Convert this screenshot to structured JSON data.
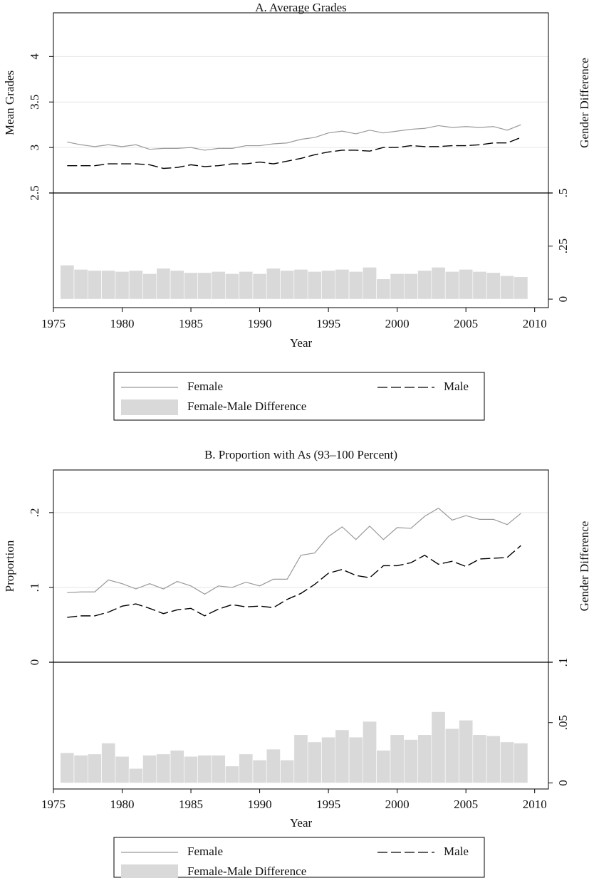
{
  "chart_data": [
    {
      "type": "line",
      "title": "A. Average Grades",
      "xlabel": "Year",
      "ylabel": "Mean Grades",
      "y2label": "Gender Difference",
      "x": [
        1976,
        1977,
        1978,
        1979,
        1980,
        1981,
        1982,
        1983,
        1984,
        1985,
        1986,
        1987,
        1988,
        1989,
        1990,
        1991,
        1992,
        1993,
        1994,
        1995,
        1996,
        1997,
        1998,
        1999,
        2000,
        2001,
        2002,
        2003,
        2004,
        2005,
        2006,
        2007,
        2008,
        2009
      ],
      "xlim": [
        1975,
        2011
      ],
      "xticks": [
        1975,
        1980,
        1985,
        1990,
        1995,
        2000,
        2005,
        2010
      ],
      "ylim": [
        2.5,
        4.48
      ],
      "yticks": [
        2.5,
        3,
        3.5,
        4
      ],
      "y2lim": [
        -0.04,
        0.5
      ],
      "y2ticks": [
        0,
        {
          "value": 0.25,
          "label": ".25"
        },
        {
          "value": 0.5,
          "label": ".5"
        }
      ],
      "grid": true,
      "series": [
        {
          "name": "Female",
          "color": "#999999",
          "dash": "solid",
          "values": [
            3.06,
            3.03,
            3.01,
            3.03,
            3.01,
            3.03,
            2.98,
            2.99,
            2.99,
            3.0,
            2.97,
            2.99,
            2.99,
            3.02,
            3.02,
            3.04,
            3.05,
            3.09,
            3.11,
            3.16,
            3.18,
            3.15,
            3.19,
            3.16,
            3.18,
            3.2,
            3.21,
            3.24,
            3.22,
            3.23,
            3.22,
            3.23,
            3.19,
            3.25
          ]
        },
        {
          "name": "Male",
          "color": "#000000",
          "dash": "dashed",
          "values": [
            2.8,
            2.8,
            2.8,
            2.82,
            2.82,
            2.82,
            2.81,
            2.77,
            2.78,
            2.81,
            2.79,
            2.8,
            2.82,
            2.82,
            2.84,
            2.82,
            2.85,
            2.88,
            2.92,
            2.95,
            2.97,
            2.97,
            2.96,
            3.0,
            3.0,
            3.02,
            3.01,
            3.01,
            3.02,
            3.02,
            3.03,
            3.05,
            3.05,
            3.11
          ]
        },
        {
          "name": "Female-Male Difference",
          "color": "#d9d9d9",
          "type": "bar",
          "axis": "y2",
          "values": [
            0.16,
            0.14,
            0.135,
            0.135,
            0.13,
            0.135,
            0.12,
            0.145,
            0.135,
            0.125,
            0.125,
            0.13,
            0.12,
            0.13,
            0.12,
            0.145,
            0.135,
            0.14,
            0.13,
            0.135,
            0.14,
            0.13,
            0.15,
            0.095,
            0.12,
            0.12,
            0.135,
            0.15,
            0.13,
            0.14,
            0.13,
            0.125,
            0.11,
            0.105
          ]
        }
      ]
    },
    {
      "type": "line",
      "title": "B. Proportion with As (93–100 Percent)",
      "xlabel": "Year",
      "ylabel": "Proportion",
      "y2label": "Gender Difference",
      "x": [
        1976,
        1977,
        1978,
        1979,
        1980,
        1981,
        1982,
        1983,
        1984,
        1985,
        1986,
        1987,
        1988,
        1989,
        1990,
        1991,
        1992,
        1993,
        1994,
        1995,
        1996,
        1997,
        1998,
        1999,
        2000,
        2001,
        2002,
        2003,
        2004,
        2005,
        2006,
        2007,
        2008,
        2009
      ],
      "xlim": [
        1975,
        2011
      ],
      "xticks": [
        1975,
        1980,
        1985,
        1990,
        1995,
        2000,
        2005,
        2010
      ],
      "ylim": [
        0,
        0.257
      ],
      "yticks": [
        0,
        {
          "value": 0.1,
          "label": ".1"
        },
        {
          "value": 0.2,
          "label": ".2"
        }
      ],
      "y2lim": [
        -0.005,
        0.1
      ],
      "y2ticks": [
        0,
        {
          "value": 0.05,
          "label": ".05"
        },
        {
          "value": 0.1,
          "label": ".1"
        }
      ],
      "grid": true,
      "series": [
        {
          "name": "Female",
          "color": "#999999",
          "dash": "solid",
          "values": [
            0.093,
            0.094,
            0.094,
            0.11,
            0.105,
            0.098,
            0.105,
            0.098,
            0.108,
            0.102,
            0.091,
            0.102,
            0.1,
            0.107,
            0.102,
            0.111,
            0.111,
            0.143,
            0.146,
            0.168,
            0.181,
            0.164,
            0.182,
            0.164,
            0.18,
            0.179,
            0.195,
            0.206,
            0.19,
            0.196,
            0.191,
            0.191,
            0.184,
            0.199
          ]
        },
        {
          "name": "Male",
          "color": "#000000",
          "dash": "dashed",
          "values": [
            0.06,
            0.062,
            0.062,
            0.067,
            0.075,
            0.078,
            0.072,
            0.065,
            0.07,
            0.072,
            0.062,
            0.071,
            0.077,
            0.074,
            0.075,
            0.073,
            0.084,
            0.092,
            0.104,
            0.119,
            0.124,
            0.116,
            0.113,
            0.129,
            0.129,
            0.133,
            0.143,
            0.131,
            0.135,
            0.128,
            0.138,
            0.139,
            0.14,
            0.156
          ]
        },
        {
          "name": "Female-Male Difference",
          "color": "#d9d9d9",
          "type": "bar",
          "axis": "y2",
          "values": [
            0.025,
            0.023,
            0.024,
            0.033,
            0.022,
            0.012,
            0.023,
            0.024,
            0.027,
            0.022,
            0.023,
            0.023,
            0.014,
            0.024,
            0.019,
            0.028,
            0.019,
            0.04,
            0.034,
            0.038,
            0.044,
            0.038,
            0.051,
            0.027,
            0.04,
            0.036,
            0.04,
            0.059,
            0.045,
            0.052,
            0.04,
            0.039,
            0.034,
            0.033
          ]
        }
      ]
    }
  ]
}
